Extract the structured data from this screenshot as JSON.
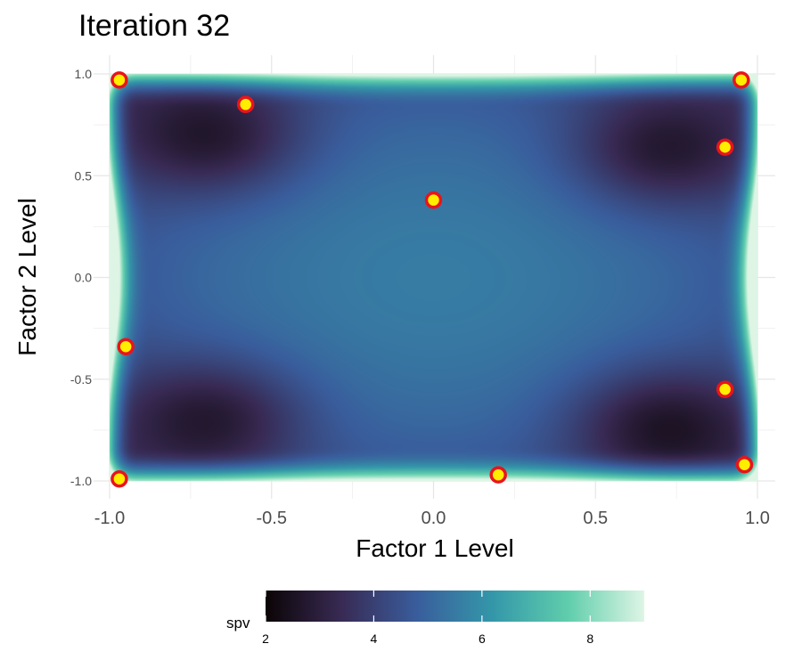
{
  "chart_data": {
    "type": "heatmap",
    "title": "Iteration 32",
    "xlabel": "Factor 1 Level",
    "ylabel": "Factor 2 Level",
    "xlim": [
      -1.0,
      1.0
    ],
    "ylim": [
      -1.0,
      1.0
    ],
    "x_ticks": [
      -1.0,
      -0.5,
      0.0,
      0.5,
      1.0
    ],
    "x_tick_labels": [
      "-1.0",
      "-0.5",
      "0.0",
      "0.5",
      "1.0"
    ],
    "y_ticks": [
      -1.0,
      -0.5,
      0.0,
      0.5,
      1.0
    ],
    "y_tick_labels": [
      "-1.0",
      "-0.5",
      "0.0",
      "0.5",
      "1.0"
    ],
    "grid": true,
    "fill_variable": "spv",
    "fill_range": [
      2,
      9
    ],
    "legend": {
      "title": "spv",
      "position": "bottom",
      "ticks": [
        2,
        4,
        6,
        8
      ],
      "tick_labels": [
        "2",
        "4",
        "6",
        "8"
      ]
    },
    "colormap": [
      "#0b0405",
      "#382a54",
      "#395d9c",
      "#3497a9",
      "#60ceac",
      "#def5e5"
    ],
    "design_points": [
      {
        "x": -0.97,
        "y": 0.97
      },
      {
        "x": -0.58,
        "y": 0.85
      },
      {
        "x": 0.95,
        "y": 0.97
      },
      {
        "x": 0.9,
        "y": 0.64
      },
      {
        "x": 0.0,
        "y": 0.38
      },
      {
        "x": -0.95,
        "y": -0.34
      },
      {
        "x": 0.9,
        "y": -0.55
      },
      {
        "x": -0.97,
        "y": -0.99
      },
      {
        "x": 0.2,
        "y": -0.97
      },
      {
        "x": 0.96,
        "y": -0.92
      }
    ],
    "point_fill": "#ffee00",
    "point_stroke": "#e8141c"
  }
}
